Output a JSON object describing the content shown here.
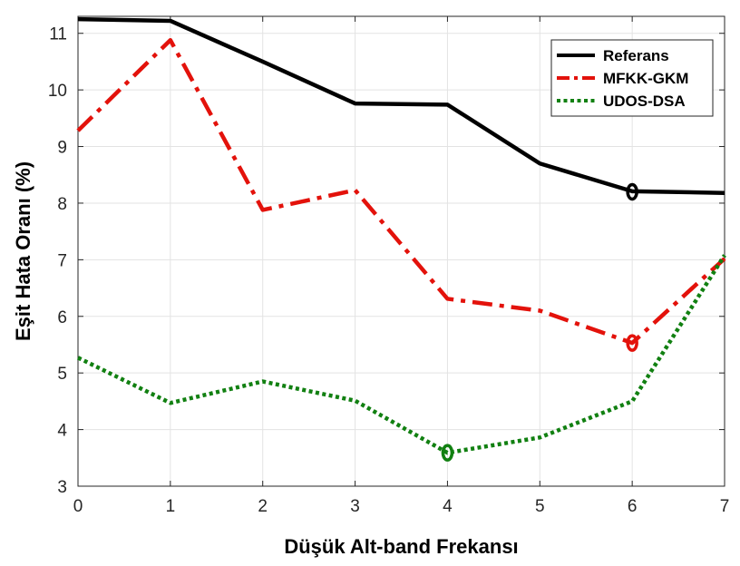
{
  "chart_data": {
    "type": "line",
    "xlabel": "Düşük Alt-band Frekansı",
    "ylabel": "Eşit Hata Oranı (%)",
    "xlim": [
      0,
      7
    ],
    "ylim": [
      3,
      11.3
    ],
    "xticks": [
      0,
      1,
      2,
      3,
      4,
      5,
      6,
      7
    ],
    "yticks": [
      3,
      4,
      5,
      6,
      7,
      8,
      9,
      10,
      11
    ],
    "grid": true,
    "legend_position": "top-right",
    "x": [
      0,
      1,
      2,
      3,
      4,
      5,
      6,
      7
    ],
    "series": [
      {
        "name": "Referans",
        "color": "#000000",
        "style": "solid",
        "values": [
          11.25,
          11.22,
          10.5,
          9.76,
          9.74,
          8.7,
          8.21,
          8.18
        ],
        "marker_x": 6,
        "marker_y": 8.2
      },
      {
        "name": "MFKK-GKM",
        "color": "#e3120b",
        "style": "dashdot",
        "values": [
          9.28,
          10.88,
          7.88,
          8.23,
          6.31,
          6.1,
          5.53,
          7.02
        ],
        "marker_x": 6,
        "marker_y": 5.53
      },
      {
        "name": "UDOS-DSA",
        "color": "#118011",
        "style": "dotted",
        "values": [
          5.27,
          4.47,
          4.85,
          4.51,
          3.59,
          3.86,
          4.5,
          7.08
        ],
        "marker_x": 4,
        "marker_y": 3.59
      }
    ]
  }
}
